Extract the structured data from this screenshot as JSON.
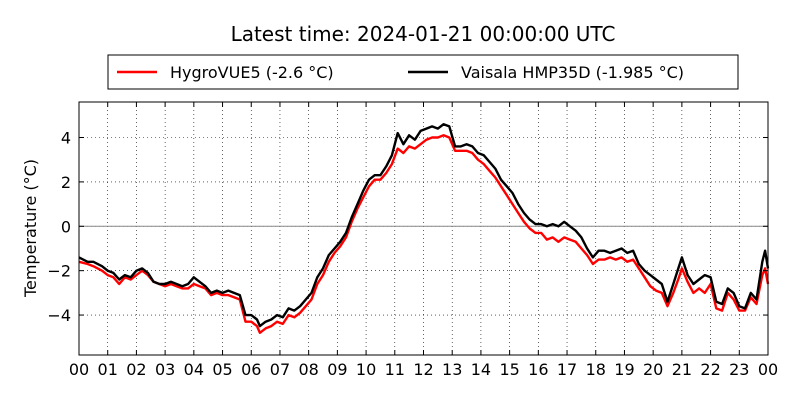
{
  "chart_data": {
    "type": "line",
    "title": "Latest time: 2024-01-21 00:00:00 UTC",
    "xlabel": "",
    "ylabel": "Temperature (°C)",
    "xlim": [
      0,
      24
    ],
    "ylim": [
      -5.8,
      5.6
    ],
    "x_tick_labels": [
      "00",
      "01",
      "02",
      "03",
      "04",
      "05",
      "06",
      "07",
      "08",
      "09",
      "10",
      "11",
      "12",
      "13",
      "14",
      "15",
      "16",
      "17",
      "18",
      "19",
      "20",
      "21",
      "22",
      "23",
      "00"
    ],
    "y_ticks": [
      -4,
      -2,
      0,
      2,
      4
    ],
    "grid": true,
    "legend_position": "top",
    "series": [
      {
        "name": "HygroVUE5 (-2.6 °C)",
        "color": "#ff0000",
        "points": [
          [
            0,
            -1.6
          ],
          [
            0.3,
            -1.7
          ],
          [
            0.5,
            -1.8
          ],
          [
            0.8,
            -2.0
          ],
          [
            1.0,
            -2.2
          ],
          [
            1.2,
            -2.3
          ],
          [
            1.4,
            -2.6
          ],
          [
            1.6,
            -2.3
          ],
          [
            1.8,
            -2.4
          ],
          [
            2.0,
            -2.2
          ],
          [
            2.2,
            -2.0
          ],
          [
            2.4,
            -2.2
          ],
          [
            2.6,
            -2.5
          ],
          [
            2.8,
            -2.6
          ],
          [
            3.0,
            -2.7
          ],
          [
            3.2,
            -2.6
          ],
          [
            3.4,
            -2.7
          ],
          [
            3.6,
            -2.8
          ],
          [
            3.8,
            -2.8
          ],
          [
            4.0,
            -2.6
          ],
          [
            4.2,
            -2.7
          ],
          [
            4.4,
            -2.8
          ],
          [
            4.6,
            -3.1
          ],
          [
            4.8,
            -3.0
          ],
          [
            5.0,
            -3.1
          ],
          [
            5.2,
            -3.1
          ],
          [
            5.4,
            -3.2
          ],
          [
            5.6,
            -3.3
          ],
          [
            5.8,
            -4.3
          ],
          [
            6.0,
            -4.3
          ],
          [
            6.2,
            -4.5
          ],
          [
            6.3,
            -4.8
          ],
          [
            6.5,
            -4.6
          ],
          [
            6.7,
            -4.5
          ],
          [
            6.9,
            -4.3
          ],
          [
            7.1,
            -4.4
          ],
          [
            7.3,
            -4.0
          ],
          [
            7.5,
            -4.1
          ],
          [
            7.7,
            -3.9
          ],
          [
            7.9,
            -3.6
          ],
          [
            8.1,
            -3.3
          ],
          [
            8.3,
            -2.6
          ],
          [
            8.5,
            -2.2
          ],
          [
            8.7,
            -1.6
          ],
          [
            8.9,
            -1.2
          ],
          [
            9.1,
            -0.9
          ],
          [
            9.3,
            -0.5
          ],
          [
            9.5,
            0.2
          ],
          [
            9.7,
            0.8
          ],
          [
            9.9,
            1.3
          ],
          [
            10.1,
            1.8
          ],
          [
            10.3,
            2.1
          ],
          [
            10.5,
            2.1
          ],
          [
            10.7,
            2.4
          ],
          [
            10.9,
            2.8
          ],
          [
            11.1,
            3.5
          ],
          [
            11.3,
            3.3
          ],
          [
            11.5,
            3.6
          ],
          [
            11.7,
            3.5
          ],
          [
            11.9,
            3.7
          ],
          [
            12.1,
            3.9
          ],
          [
            12.3,
            4.0
          ],
          [
            12.5,
            4.0
          ],
          [
            12.7,
            4.1
          ],
          [
            12.9,
            4.0
          ],
          [
            13.1,
            3.4
          ],
          [
            13.3,
            3.4
          ],
          [
            13.5,
            3.4
          ],
          [
            13.7,
            3.3
          ],
          [
            13.9,
            3.0
          ],
          [
            14.1,
            2.8
          ],
          [
            14.3,
            2.5
          ],
          [
            14.5,
            2.2
          ],
          [
            14.7,
            1.8
          ],
          [
            14.9,
            1.4
          ],
          [
            15.1,
            1.0
          ],
          [
            15.3,
            0.6
          ],
          [
            15.5,
            0.2
          ],
          [
            15.7,
            -0.1
          ],
          [
            15.9,
            -0.3
          ],
          [
            16.1,
            -0.3
          ],
          [
            16.3,
            -0.6
          ],
          [
            16.5,
            -0.5
          ],
          [
            16.7,
            -0.7
          ],
          [
            16.9,
            -0.5
          ],
          [
            17.1,
            -0.6
          ],
          [
            17.3,
            -0.7
          ],
          [
            17.5,
            -1.0
          ],
          [
            17.7,
            -1.3
          ],
          [
            17.9,
            -1.7
          ],
          [
            18.1,
            -1.5
          ],
          [
            18.3,
            -1.5
          ],
          [
            18.5,
            -1.4
          ],
          [
            18.7,
            -1.5
          ],
          [
            18.9,
            -1.4
          ],
          [
            19.1,
            -1.6
          ],
          [
            19.3,
            -1.5
          ],
          [
            19.5,
            -1.9
          ],
          [
            19.7,
            -2.3
          ],
          [
            19.9,
            -2.7
          ],
          [
            20.1,
            -2.9
          ],
          [
            20.3,
            -3.0
          ],
          [
            20.5,
            -3.6
          ],
          [
            20.7,
            -3.0
          ],
          [
            20.9,
            -2.3
          ],
          [
            21.0,
            -1.9
          ],
          [
            21.2,
            -2.5
          ],
          [
            21.4,
            -3.0
          ],
          [
            21.6,
            -2.8
          ],
          [
            21.8,
            -3.0
          ],
          [
            22.0,
            -2.6
          ],
          [
            22.2,
            -3.7
          ],
          [
            22.4,
            -3.8
          ],
          [
            22.6,
            -3.0
          ],
          [
            22.8,
            -3.3
          ],
          [
            23.0,
            -3.8
          ],
          [
            23.2,
            -3.8
          ],
          [
            23.4,
            -3.2
          ],
          [
            23.6,
            -3.5
          ],
          [
            23.8,
            -2.2
          ],
          [
            23.9,
            -1.9
          ],
          [
            24.0,
            -2.6
          ]
        ]
      },
      {
        "name": "Vaisala HMP35D (-1.985 °C)",
        "color": "#000000",
        "points": [
          [
            0,
            -1.4
          ],
          [
            0.3,
            -1.6
          ],
          [
            0.5,
            -1.6
          ],
          [
            0.8,
            -1.8
          ],
          [
            1.0,
            -2.0
          ],
          [
            1.2,
            -2.1
          ],
          [
            1.4,
            -2.4
          ],
          [
            1.6,
            -2.2
          ],
          [
            1.8,
            -2.3
          ],
          [
            2.0,
            -2.0
          ],
          [
            2.2,
            -1.9
          ],
          [
            2.4,
            -2.1
          ],
          [
            2.6,
            -2.5
          ],
          [
            2.8,
            -2.6
          ],
          [
            3.0,
            -2.6
          ],
          [
            3.2,
            -2.5
          ],
          [
            3.4,
            -2.6
          ],
          [
            3.6,
            -2.7
          ],
          [
            3.8,
            -2.6
          ],
          [
            4.0,
            -2.3
          ],
          [
            4.2,
            -2.5
          ],
          [
            4.4,
            -2.7
          ],
          [
            4.6,
            -3.0
          ],
          [
            4.8,
            -2.9
          ],
          [
            5.0,
            -3.0
          ],
          [
            5.2,
            -2.9
          ],
          [
            5.4,
            -3.0
          ],
          [
            5.6,
            -3.1
          ],
          [
            5.8,
            -4.0
          ],
          [
            6.0,
            -4.0
          ],
          [
            6.2,
            -4.2
          ],
          [
            6.3,
            -4.5
          ],
          [
            6.5,
            -4.3
          ],
          [
            6.7,
            -4.2
          ],
          [
            6.9,
            -4.0
          ],
          [
            7.1,
            -4.1
          ],
          [
            7.3,
            -3.7
          ],
          [
            7.5,
            -3.8
          ],
          [
            7.7,
            -3.6
          ],
          [
            7.9,
            -3.3
          ],
          [
            8.1,
            -3.0
          ],
          [
            8.3,
            -2.3
          ],
          [
            8.5,
            -1.9
          ],
          [
            8.7,
            -1.3
          ],
          [
            8.9,
            -1.0
          ],
          [
            9.1,
            -0.7
          ],
          [
            9.3,
            -0.3
          ],
          [
            9.5,
            0.4
          ],
          [
            9.7,
            1.0
          ],
          [
            9.9,
            1.6
          ],
          [
            10.1,
            2.1
          ],
          [
            10.3,
            2.3
          ],
          [
            10.5,
            2.3
          ],
          [
            10.7,
            2.7
          ],
          [
            10.9,
            3.2
          ],
          [
            11.1,
            4.2
          ],
          [
            11.3,
            3.7
          ],
          [
            11.5,
            4.1
          ],
          [
            11.7,
            3.9
          ],
          [
            11.9,
            4.3
          ],
          [
            12.1,
            4.4
          ],
          [
            12.3,
            4.5
          ],
          [
            12.5,
            4.4
          ],
          [
            12.7,
            4.6
          ],
          [
            12.9,
            4.5
          ],
          [
            13.1,
            3.6
          ],
          [
            13.3,
            3.6
          ],
          [
            13.5,
            3.7
          ],
          [
            13.7,
            3.6
          ],
          [
            13.9,
            3.3
          ],
          [
            14.1,
            3.2
          ],
          [
            14.3,
            2.9
          ],
          [
            14.5,
            2.6
          ],
          [
            14.7,
            2.1
          ],
          [
            14.9,
            1.8
          ],
          [
            15.1,
            1.5
          ],
          [
            15.3,
            1.0
          ],
          [
            15.5,
            0.6
          ],
          [
            15.7,
            0.3
          ],
          [
            15.9,
            0.1
          ],
          [
            16.1,
            0.1
          ],
          [
            16.3,
            0.0
          ],
          [
            16.5,
            0.1
          ],
          [
            16.7,
            0.0
          ],
          [
            16.9,
            0.2
          ],
          [
            17.1,
            0.0
          ],
          [
            17.3,
            -0.2
          ],
          [
            17.5,
            -0.5
          ],
          [
            17.7,
            -1.0
          ],
          [
            17.9,
            -1.4
          ],
          [
            18.1,
            -1.1
          ],
          [
            18.3,
            -1.1
          ],
          [
            18.5,
            -1.2
          ],
          [
            18.7,
            -1.1
          ],
          [
            18.9,
            -1.0
          ],
          [
            19.1,
            -1.2
          ],
          [
            19.3,
            -1.1
          ],
          [
            19.5,
            -1.7
          ],
          [
            19.7,
            -2.0
          ],
          [
            19.9,
            -2.2
          ],
          [
            20.1,
            -2.4
          ],
          [
            20.3,
            -2.6
          ],
          [
            20.5,
            -3.4
          ],
          [
            20.7,
            -2.6
          ],
          [
            20.9,
            -1.8
          ],
          [
            21.0,
            -1.4
          ],
          [
            21.2,
            -2.2
          ],
          [
            21.4,
            -2.6
          ],
          [
            21.6,
            -2.4
          ],
          [
            21.8,
            -2.2
          ],
          [
            22.0,
            -2.3
          ],
          [
            22.2,
            -3.4
          ],
          [
            22.4,
            -3.5
          ],
          [
            22.6,
            -2.8
          ],
          [
            22.8,
            -3.0
          ],
          [
            23.0,
            -3.6
          ],
          [
            23.2,
            -3.7
          ],
          [
            23.4,
            -3.0
          ],
          [
            23.6,
            -3.3
          ],
          [
            23.8,
            -1.6
          ],
          [
            23.9,
            -1.1
          ],
          [
            24.0,
            -1.9
          ]
        ]
      }
    ]
  }
}
